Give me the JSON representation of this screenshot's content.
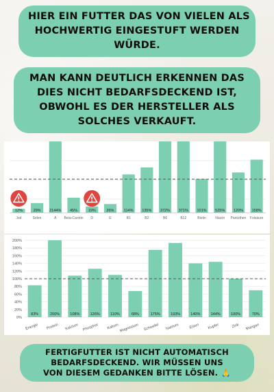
{
  "header": {
    "line1": "HIER EIN FUTTER DAS VON VIELEN ALS",
    "line2": "HOCHWERTIG EINGESTUFT WERDEN",
    "line3": "WÜRDE."
  },
  "subheader": {
    "line1": "MAN KANN DEUTLICH ERKENNEN DAS",
    "line2": "DIES NICHT BEDARFSDECKEND IST,",
    "line3": "OBWOHL ES DER HERSTELLER ALS",
    "line4": "SOLCHES VERKAUFT."
  },
  "footer": {
    "line1": "FERTIGFUTTER IST NICHT AUTOMATISCH",
    "line2": "BEDARFSDECKEND. WIR MÜSSEN UNS",
    "line3": "VON DIESEM GEDANKEN BITTE LÖSEN. 🙏"
  },
  "colors": {
    "bar": "#7dcfb1",
    "warning": "#e0443e",
    "reference_line": "#555555",
    "bubble": "#7dcfb1"
  },
  "chart_data": [
    {
      "type": "bar",
      "categories": [
        "Jod",
        "Selen",
        "A",
        "Beta-Carotin",
        "D",
        "E",
        "B1",
        "B2",
        "B6",
        "B12",
        "Biotin",
        "Niacin",
        "Pantothen",
        "Folsäure"
      ],
      "values": [
        12,
        29,
        2144,
        45,
        19,
        26,
        114,
        135,
        372,
        371,
        101,
        525,
        120,
        158
      ],
      "value_labels": [
        "12%",
        "29%",
        "2144%",
        "45%",
        "19%",
        "26%",
        "114%",
        "135%",
        "372%",
        "371%",
        "101%",
        "525%",
        "120%",
        "158%"
      ],
      "reference_line": 100,
      "warning_icons_on": [
        "Jod",
        "D"
      ],
      "grid": true,
      "display_clipped": true
    },
    {
      "type": "bar",
      "categories": [
        "Energie",
        "Protein",
        "Kalzium",
        "Phosphor",
        "Kalium",
        "Magnesium",
        "Schwefel",
        "Natrium",
        "Eisen",
        "Kupfer",
        "Zink",
        "Mangan"
      ],
      "values": [
        83,
        200,
        108,
        126,
        110,
        68,
        175,
        193,
        140,
        144,
        100,
        70
      ],
      "value_labels": [
        "83%",
        "200%",
        "108%",
        "126%",
        "110%",
        "68%",
        "175%",
        "193%",
        "140%",
        "144%",
        "100%",
        "70%"
      ],
      "ylim": [
        0,
        200
      ],
      "yticks": [
        "0%",
        "20%",
        "40%",
        "60%",
        "80%",
        "100%",
        "120%",
        "140%",
        "160%",
        "180%",
        "200%"
      ],
      "reference_line": 100,
      "grid": true
    }
  ]
}
